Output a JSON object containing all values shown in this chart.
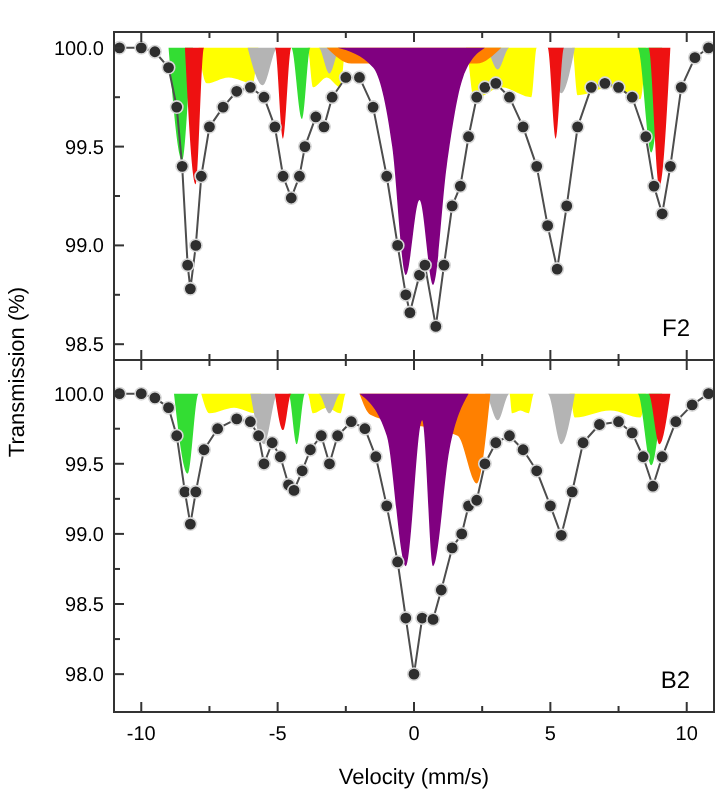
{
  "chart_data": [
    {
      "type": "line",
      "ylabel": "Transmission (%)",
      "annotations": [
        "F2"
      ],
      "xlim": [
        -11,
        11
      ],
      "xticks": [
        -10,
        {
          "value": -7.5,
          "label": null
        },
        -5,
        {
          "value": -2.5,
          "label": null
        },
        0,
        {
          "value": 2.5,
          "label": null
        },
        5,
        {
          "value": 7.5,
          "label": null
        },
        10
      ],
      "ylim": [
        98.42,
        100.08
      ],
      "yticks": [
        {
          "value": 98.5,
          "label": "98.5"
        },
        {
          "value": 98.75,
          "label": null
        },
        {
          "value": 99,
          "label": "99.0"
        },
        {
          "value": 99.25,
          "label": null
        },
        {
          "value": 99.5,
          "label": "99.5"
        },
        {
          "value": 99.75,
          "label": null
        },
        {
          "value": 100,
          "label": "100.0"
        }
      ],
      "tick_labels": "y",
      "series": [
        {
          "type": "area",
          "color": "#ffff00",
          "x": [
            -7.9,
            -7.6,
            -6.8,
            -5.9,
            -5.7,
            -3.9,
            -3.7,
            -3.2,
            -2.7,
            -2.5,
            1.9,
            2.2,
            3.2,
            4.3,
            4.5,
            5.8,
            6.0,
            7.2,
            8.3,
            8.5
          ],
          "values": [
            100,
            99.82,
            99.85,
            99.82,
            100,
            100,
            99.8,
            99.85,
            99.8,
            100,
            100,
            99.74,
            99.8,
            99.75,
            100,
            100,
            99.76,
            99.8,
            99.74,
            100
          ]
        },
        {
          "type": "area",
          "color": "#b4b4b4",
          "x": [
            -6.1,
            -5.55,
            -5.0,
            -3.5,
            -3.1,
            -2.7,
            2.6,
            3.07,
            3.5,
            4.9,
            5.4,
            5.9
          ],
          "values": [
            100,
            99.81,
            100,
            100,
            99.87,
            100,
            100,
            99.89,
            100,
            100,
            99.77,
            100
          ]
        },
        {
          "type": "area",
          "color": "#33dd33",
          "x": [
            -9.0,
            -8.5,
            -8.1,
            -4.5,
            -4.1,
            -3.8,
            8.2,
            8.7,
            9.1
          ],
          "values": [
            100,
            99.43,
            100,
            100,
            99.64,
            100,
            100,
            99.47,
            100
          ]
        },
        {
          "type": "area",
          "color": "#ee1111",
          "x": [
            -8.4,
            -8.0,
            -7.7,
            -5.1,
            -4.8,
            -4.5,
            4.9,
            5.2,
            5.5,
            8.6,
            9.0,
            9.4
          ],
          "values": [
            100,
            99.31,
            100,
            100,
            99.54,
            100,
            100,
            99.54,
            100,
            100,
            99.3,
            100
          ]
        },
        {
          "type": "area",
          "color": "#ff8000",
          "x": [
            -3.2,
            -2.3,
            2.3,
            3.2
          ],
          "values": [
            100,
            99.92,
            99.92,
            100
          ]
        },
        {
          "type": "area",
          "color": "#800080",
          "x": [
            -2.8,
            -1.5,
            -0.8,
            -0.3,
            0.2,
            0.7,
            1.2,
            1.8,
            2.6
          ],
          "values": [
            100,
            99.9,
            99.5,
            98.85,
            99.23,
            98.8,
            99.4,
            99.85,
            100
          ]
        },
        {
          "color": "#4d4d4d",
          "marker": "circle",
          "line_style": "solid",
          "x": [
            -10.8,
            -10,
            -9.5,
            -9,
            -8.7,
            -8.5,
            -8.3,
            -8.2,
            -8.0,
            -7.8,
            -7.5,
            -7,
            -6.5,
            -6,
            -5.5,
            -5.1,
            -4.8,
            -4.5,
            -4.2,
            -4,
            -3.6,
            -3.3,
            -3,
            -2.5,
            -2,
            -1.5,
            -1.0,
            -0.6,
            -0.3,
            -0.15,
            0.2,
            0.4,
            0.8,
            1.1,
            1.4,
            1.7,
            2.0,
            2.3,
            2.6,
            3.0,
            3.5,
            4.0,
            4.5,
            4.9,
            5.25,
            5.6,
            6.0,
            6.5,
            7,
            7.5,
            8,
            8.5,
            8.8,
            9.1,
            9.4,
            9.8,
            10.3,
            10.8
          ],
          "values": [
            100,
            100,
            99.98,
            99.9,
            99.7,
            99.4,
            98.9,
            98.78,
            99.0,
            99.35,
            99.6,
            99.7,
            99.78,
            99.8,
            99.75,
            99.6,
            99.35,
            99.24,
            99.35,
            99.5,
            99.65,
            99.6,
            99.75,
            99.85,
            99.85,
            99.7,
            99.35,
            99.0,
            98.75,
            98.66,
            98.85,
            98.9,
            98.59,
            98.9,
            99.2,
            99.3,
            99.55,
            99.75,
            99.8,
            99.82,
            99.75,
            99.6,
            99.4,
            99.1,
            98.88,
            99.2,
            99.6,
            99.8,
            99.82,
            99.8,
            99.75,
            99.55,
            99.3,
            99.16,
            99.4,
            99.8,
            99.95,
            100
          ]
        }
      ]
    },
    {
      "type": "line",
      "xlabel": "Velocity (mm/s)",
      "annotations": [
        "B2"
      ],
      "xlim": [
        -11,
        11
      ],
      "xticks": [
        -10,
        {
          "value": -7.5,
          "label": null
        },
        -5,
        {
          "value": -2.5,
          "label": null
        },
        0,
        {
          "value": 2.5,
          "label": null
        },
        5,
        {
          "value": 7.5,
          "label": null
        },
        10
      ],
      "ylim": [
        97.73,
        100.24
      ],
      "yticks": [
        {
          "value": 98,
          "label": "98.0"
        },
        {
          "value": 98.25,
          "label": null
        },
        {
          "value": 98.5,
          "label": "98.5"
        },
        {
          "value": 98.75,
          "label": null
        },
        {
          "value": 99,
          "label": "99.0"
        },
        {
          "value": 99.25,
          "label": null
        },
        {
          "value": 99.5,
          "label": "99.5"
        },
        {
          "value": 99.75,
          "label": null
        },
        {
          "value": 100,
          "label": "100.0"
        }
      ],
      "series": [
        {
          "type": "area",
          "color": "#ffff00",
          "x": [
            -7.8,
            -7.5,
            -6.6,
            -5.8,
            -5.6,
            -3.9,
            -3.7,
            -3.2,
            -2.7,
            -2.5,
            3.5,
            3.6,
            3.9,
            4.2,
            4.4,
            5.7,
            5.9,
            7.2,
            8.3,
            8.5
          ],
          "values": [
            100,
            99.86,
            99.9,
            99.86,
            100,
            100,
            99.86,
            99.9,
            99.86,
            100,
            100,
            99.86,
            99.88,
            99.86,
            100,
            100,
            99.83,
            99.88,
            99.83,
            100
          ]
        },
        {
          "type": "area",
          "color": "#b4b4b4",
          "x": [
            -6.0,
            -5.5,
            -5.0,
            -3.5,
            -3.1,
            -2.7,
            2.6,
            3.07,
            3.5,
            4.9,
            5.4,
            5.9
          ],
          "values": [
            100,
            99.64,
            100,
            100,
            99.86,
            100,
            100,
            99.81,
            100,
            100,
            99.64,
            100
          ]
        },
        {
          "type": "area",
          "color": "#33dd33",
          "x": [
            -8.8,
            -8.3,
            -7.9,
            -4.6,
            -4.3,
            -4.0,
            8.2,
            8.7,
            9.1
          ],
          "values": [
            100,
            99.43,
            100,
            100,
            99.64,
            100,
            100,
            99.49,
            100
          ]
        },
        {
          "type": "area",
          "color": "#ee1111",
          "x": [
            -5.1,
            -4.8,
            -4.5,
            8.6,
            9.0,
            9.4
          ],
          "values": [
            100,
            99.74,
            100,
            100,
            99.64,
            100
          ]
        },
        {
          "type": "area",
          "color": "#ff8000",
          "x": [
            -2.0,
            -1.6,
            1.6,
            2.3,
            2.8
          ],
          "values": [
            100,
            99.85,
            99.7,
            99.36,
            100
          ]
        },
        {
          "type": "area",
          "color": "#800080",
          "x": [
            -2.0,
            -1.0,
            -0.3,
            0.3,
            0.7,
            1.3,
            2.0
          ],
          "values": [
            100,
            99.7,
            98.77,
            99.81,
            98.77,
            99.6,
            100
          ]
        },
        {
          "color": "#4d4d4d",
          "marker": "circle",
          "line_style": "solid",
          "x": [
            -10.8,
            -10,
            -9.5,
            -9,
            -8.7,
            -8.4,
            -8.2,
            -8.0,
            -7.7,
            -7.2,
            -6.5,
            -6,
            -5.7,
            -5.5,
            -5.2,
            -4.9,
            -4.6,
            -4.4,
            -4.1,
            -3.8,
            -3.4,
            -3.1,
            -2.8,
            -2.3,
            -1.8,
            -1.4,
            -1.0,
            -0.6,
            -0.3,
            0,
            0.3,
            0.7,
            1.0,
            1.4,
            1.75,
            2.0,
            2.3,
            2.6,
            3.0,
            3.5,
            4.0,
            4.5,
            5.0,
            5.4,
            5.8,
            6.2,
            6.8,
            7.5,
            8.0,
            8.4,
            8.76,
            9.1,
            9.6,
            10.2,
            10.8
          ],
          "values": [
            100,
            100,
            99.97,
            99.9,
            99.7,
            99.3,
            99.07,
            99.3,
            99.6,
            99.75,
            99.82,
            99.8,
            99.7,
            99.5,
            99.65,
            99.55,
            99.35,
            99.31,
            99.45,
            99.6,
            99.7,
            99.5,
            99.7,
            99.8,
            99.75,
            99.55,
            99.2,
            98.8,
            98.4,
            98.0,
            98.4,
            98.39,
            98.6,
            98.9,
            99.0,
            99.2,
            99.24,
            99.5,
            99.65,
            99.7,
            99.6,
            99.45,
            99.2,
            98.99,
            99.3,
            99.65,
            99.78,
            99.8,
            99.72,
            99.55,
            99.34,
            99.55,
            99.8,
            99.92,
            100
          ]
        }
      ]
    }
  ]
}
